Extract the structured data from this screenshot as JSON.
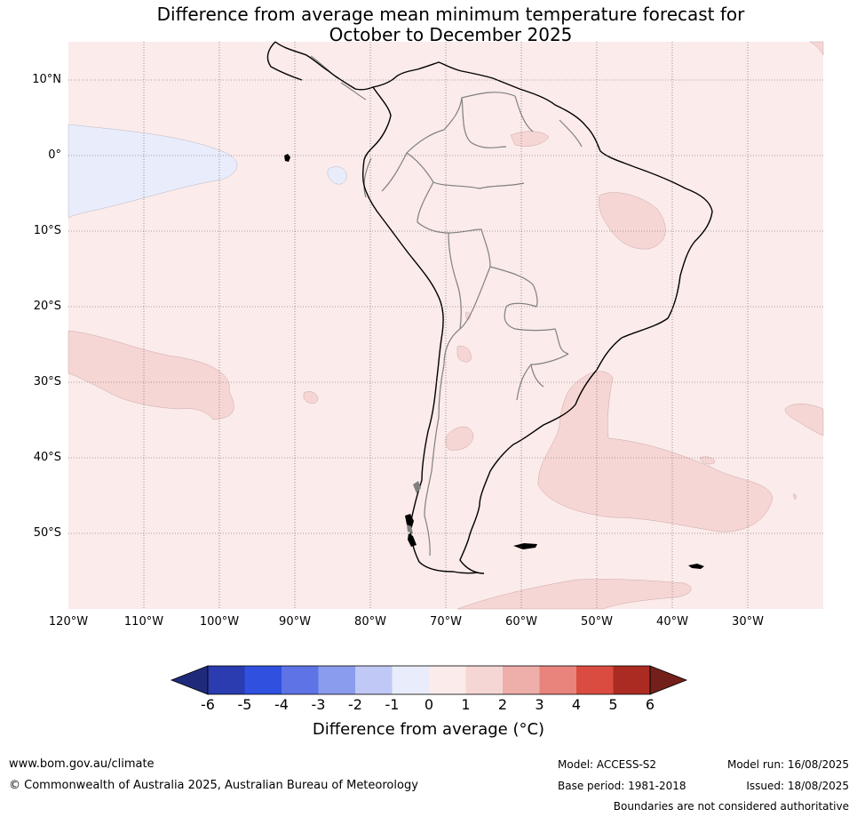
{
  "title_line1": "Difference from average mean minimum temperature forecast for",
  "title_line2": "October to December 2025",
  "map": {
    "lat_labels": [
      "10°N",
      "0°",
      "10°S",
      "20°S",
      "30°S",
      "40°S",
      "50°S"
    ],
    "lon_labels": [
      "120°W",
      "110°W",
      "100°W",
      "90°W",
      "80°W",
      "70°W",
      "60°W",
      "50°W",
      "40°W",
      "30°W"
    ],
    "ocean_color": "#fbebea",
    "anomaly_colors": {
      "neg_0_1": "#e9ecfb",
      "pos_1_2": "#f6d6d4"
    }
  },
  "colorbar": {
    "ticks": [
      "-6",
      "-5",
      "-4",
      "-3",
      "-2",
      "-1",
      "0",
      "1",
      "2",
      "3",
      "4",
      "5",
      "6"
    ],
    "colors": [
      "#1f2b7a",
      "#2a3cb0",
      "#3050e0",
      "#5e74e6",
      "#8a9cee",
      "#c0c8f5",
      "#e9ecfb",
      "#fbebea",
      "#f6d6d4",
      "#eeaea9",
      "#e8847c",
      "#da4c3f",
      "#ab2b22",
      "#74201a"
    ],
    "label": "Difference from average (°C)"
  },
  "footer": {
    "url": "www.bom.gov.au/climate",
    "copyright": "© Commonwealth of Australia 2025, Australian Bureau of Meteorology",
    "model": "Model: ACCESS-S2",
    "base_period": "Base period: 1981-2018",
    "model_run": "Model run: 16/08/2025",
    "issued": "Issued: 18/08/2025",
    "disclaimer": "Boundaries are not considered authoritative"
  }
}
